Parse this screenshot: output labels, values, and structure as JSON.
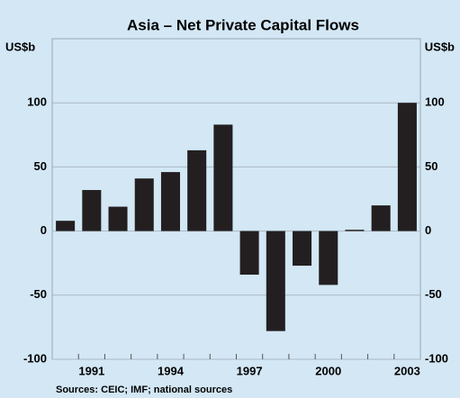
{
  "chart_data": {
    "type": "bar",
    "title": "Asia – Net Private Capital Flows",
    "y_label": "US$b",
    "y2_label": "US$b",
    "source": "Sources: CEIC; IMF; national sources",
    "categories": [
      null,
      "1991",
      null,
      null,
      "1994",
      null,
      null,
      "1997",
      null,
      null,
      "2000",
      null,
      null,
      "2003"
    ],
    "values": [
      8,
      32,
      19,
      41,
      46,
      63,
      83,
      -34,
      -78,
      -27,
      -42,
      1,
      20,
      100
    ],
    "color": "#231f20",
    "ylim": [
      -100,
      150
    ],
    "yticks": [
      -100,
      -50,
      0,
      50,
      100
    ],
    "grid": true
  }
}
